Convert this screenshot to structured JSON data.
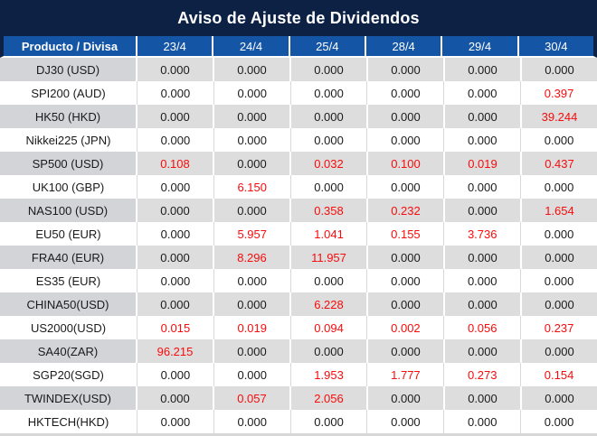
{
  "title": "Aviso de Ajuste de Dividendos",
  "header": {
    "product_column": "Producto / Divisa"
  },
  "chart_data": {
    "type": "table",
    "title": "Aviso de Ajuste de Dividendos",
    "columns": [
      "Producto / Divisa",
      "23/4",
      "24/4",
      "25/4",
      "28/4",
      "29/4",
      "30/4"
    ],
    "dates": [
      "23/4",
      "24/4",
      "25/4",
      "28/4",
      "29/4",
      "30/4"
    ],
    "rows": [
      {
        "product": "DJ30 (USD)",
        "values": [
          "0.000",
          "0.000",
          "0.000",
          "0.000",
          "0.000",
          "0.000"
        ]
      },
      {
        "product": "SPI200 (AUD)",
        "values": [
          "0.000",
          "0.000",
          "0.000",
          "0.000",
          "0.000",
          "0.397"
        ]
      },
      {
        "product": "HK50 (HKD)",
        "values": [
          "0.000",
          "0.000",
          "0.000",
          "0.000",
          "0.000",
          "39.244"
        ]
      },
      {
        "product": "Nikkei225 (JPN)",
        "values": [
          "0.000",
          "0.000",
          "0.000",
          "0.000",
          "0.000",
          "0.000"
        ]
      },
      {
        "product": "SP500 (USD)",
        "values": [
          "0.108",
          "0.000",
          "0.032",
          "0.100",
          "0.019",
          "0.437"
        ]
      },
      {
        "product": "UK100 (GBP)",
        "values": [
          "0.000",
          "6.150",
          "0.000",
          "0.000",
          "0.000",
          "0.000"
        ]
      },
      {
        "product": "NAS100 (USD)",
        "values": [
          "0.000",
          "0.000",
          "0.358",
          "0.232",
          "0.000",
          "1.654"
        ]
      },
      {
        "product": "EU50 (EUR)",
        "values": [
          "0.000",
          "5.957",
          "1.041",
          "0.155",
          "3.736",
          "0.000"
        ]
      },
      {
        "product": "FRA40 (EUR)",
        "values": [
          "0.000",
          "8.296",
          "11.957",
          "0.000",
          "0.000",
          "0.000"
        ]
      },
      {
        "product": "ES35 (EUR)",
        "values": [
          "0.000",
          "0.000",
          "0.000",
          "0.000",
          "0.000",
          "0.000"
        ]
      },
      {
        "product": "CHINA50(USD)",
        "values": [
          "0.000",
          "0.000",
          "6.228",
          "0.000",
          "0.000",
          "0.000"
        ]
      },
      {
        "product": "US2000(USD)",
        "values": [
          "0.015",
          "0.019",
          "0.094",
          "0.002",
          "0.056",
          "0.237"
        ]
      },
      {
        "product": "SA40(ZAR)",
        "values": [
          "96.215",
          "0.000",
          "0.000",
          "0.000",
          "0.000",
          "0.000"
        ]
      },
      {
        "product": "SGP20(SGD)",
        "values": [
          "0.000",
          "0.000",
          "1.953",
          "1.777",
          "0.273",
          "0.154"
        ]
      },
      {
        "product": "TWINDEX(USD)",
        "values": [
          "0.000",
          "0.057",
          "2.056",
          "0.000",
          "0.000",
          "0.000"
        ]
      },
      {
        "product": "HKTECH(HKD)",
        "values": [
          "0.000",
          "0.000",
          "0.000",
          "0.000",
          "0.000",
          "0.000"
        ]
      }
    ],
    "value_formatting": "values different from 0.000 are rendered in red",
    "layout": {
      "striped": true,
      "first_row_stripe": "gray"
    }
  },
  "colors": {
    "title_bg": "#0C2144",
    "header_bg": "#1455A6",
    "header_text": "#FFFFFF",
    "alt_row_label_bg": "#D2D4D8",
    "alt_row_bg": "#DDDDDD",
    "value_text": "#1A1A1A",
    "nonzero_value_text": "#F90B0B"
  }
}
